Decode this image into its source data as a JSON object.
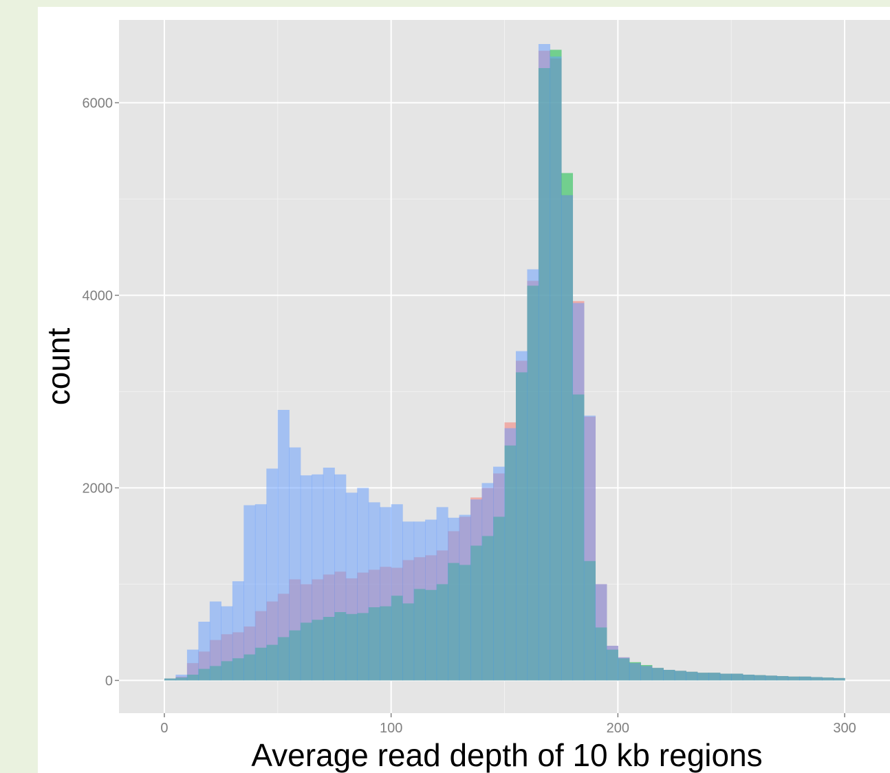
{
  "chart_data": {
    "type": "histogram",
    "title": "",
    "xlabel": "Average read depth of 10 kb regions",
    "ylabel": "count",
    "xlim": [
      -20,
      320
    ],
    "ylim": [
      -340,
      6860
    ],
    "bin_width": 5,
    "x_ticks": [
      0,
      100,
      200,
      300
    ],
    "x_tick_labels": [
      "0",
      "100",
      "200",
      "300"
    ],
    "y_ticks": [
      0,
      2000,
      4000,
      6000
    ],
    "y_tick_labels": [
      "0",
      "2000",
      "4000",
      "6000"
    ],
    "grid": true,
    "legend": "none",
    "bin_starts": [
      0,
      5,
      10,
      15,
      20,
      25,
      30,
      35,
      40,
      45,
      50,
      55,
      60,
      65,
      70,
      75,
      80,
      85,
      90,
      95,
      100,
      105,
      110,
      115,
      120,
      125,
      130,
      135,
      140,
      145,
      150,
      155,
      160,
      165,
      170,
      175,
      180,
      185,
      190,
      195,
      200,
      205,
      210,
      215,
      220,
      225,
      230,
      235,
      240,
      245,
      250,
      255,
      260,
      265,
      270,
      275,
      280,
      285,
      290,
      295
    ],
    "series": [
      {
        "color": "#f8766d",
        "values": [
          20,
          40,
          180,
          300,
          420,
          480,
          500,
          560,
          720,
          820,
          900,
          1050,
          1000,
          1050,
          1100,
          1130,
          1060,
          1120,
          1150,
          1180,
          1170,
          1250,
          1280,
          1300,
          1350,
          1550,
          1700,
          1900,
          2000,
          2150,
          2680,
          3320,
          4150,
          6540,
          6460,
          5040,
          3940,
          2740,
          1000,
          360,
          240,
          180,
          150,
          130,
          110,
          100,
          90,
          80,
          80,
          70,
          70,
          60,
          55,
          50,
          45,
          40,
          40,
          35,
          30,
          25
        ]
      },
      {
        "color": "#00ba38",
        "values": [
          20,
          30,
          60,
          120,
          150,
          200,
          230,
          270,
          340,
          370,
          450,
          520,
          600,
          630,
          660,
          710,
          690,
          700,
          760,
          770,
          880,
          800,
          950,
          940,
          1000,
          1220,
          1200,
          1400,
          1500,
          1700,
          2440,
          3200,
          4100,
          6360,
          6550,
          5270,
          2970,
          1240,
          550,
          320,
          230,
          190,
          160,
          130,
          110,
          100,
          90,
          80,
          80,
          70,
          70,
          60,
          55,
          50,
          45,
          40,
          40,
          35,
          30,
          25
        ]
      },
      {
        "color": "#619cff",
        "values": [
          20,
          60,
          320,
          610,
          820,
          770,
          1030,
          1820,
          1830,
          2200,
          2810,
          2420,
          2130,
          2140,
          2210,
          2140,
          1950,
          2000,
          1850,
          1800,
          1830,
          1650,
          1650,
          1670,
          1800,
          1690,
          1720,
          1880,
          2050,
          2220,
          2620,
          3420,
          4270,
          6610,
          6480,
          5040,
          3920,
          2750,
          1000,
          360,
          240,
          180,
          150,
          130,
          110,
          100,
          90,
          80,
          80,
          70,
          70,
          60,
          55,
          50,
          45,
          40,
          40,
          35,
          30,
          25
        ]
      }
    ]
  }
}
